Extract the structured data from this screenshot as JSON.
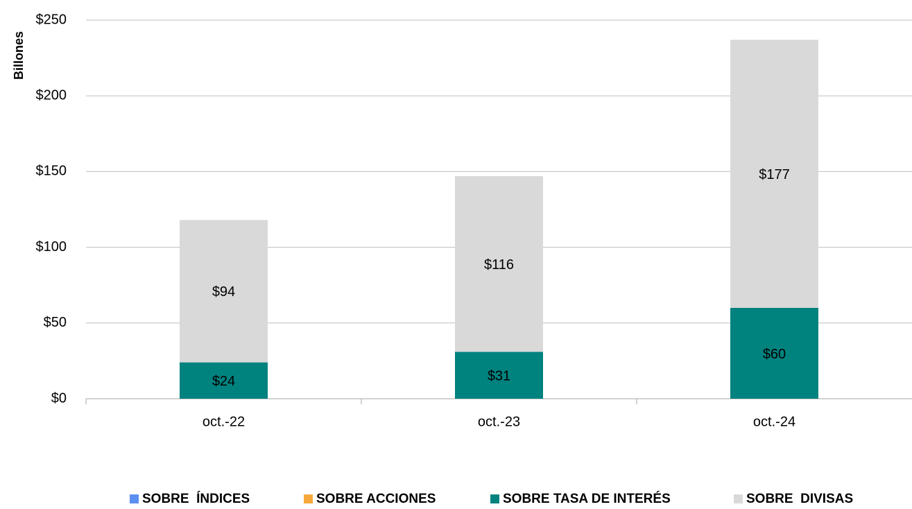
{
  "chart_data": {
    "type": "stacked_bar",
    "y_label": "Billones",
    "categories": [
      "oct.-22",
      "oct.-23",
      "oct.-24"
    ],
    "series": [
      {
        "name": "SOBRE  ÍNDICES",
        "color": "#5b8ff0",
        "values": [
          0,
          0,
          0
        ]
      },
      {
        "name": "SOBRE ACCIONES",
        "color": "#f5a93a",
        "values": [
          0,
          0,
          0
        ]
      },
      {
        "name": "SOBRE TASA DE INTERÉS",
        "color": "#00827f",
        "values": [
          24,
          31,
          60
        ],
        "value_labels": [
          "$24",
          "$31",
          "$60"
        ]
      },
      {
        "name": "SOBRE  DIVISAS",
        "color": "#d9d9d9",
        "values": [
          94,
          116,
          177
        ],
        "value_labels": [
          "$94",
          "$116",
          "$177"
        ]
      }
    ],
    "ylim": [
      0,
      250
    ],
    "yticks": [
      {
        "value": 0,
        "label": "$0"
      },
      {
        "value": 50,
        "label": "$50"
      },
      {
        "value": 100,
        "label": "$100"
      },
      {
        "value": 150,
        "label": "$150"
      },
      {
        "value": 200,
        "label": "$200"
      },
      {
        "value": 250,
        "label": "$250"
      }
    ],
    "grid": true,
    "legend": "bottom"
  }
}
